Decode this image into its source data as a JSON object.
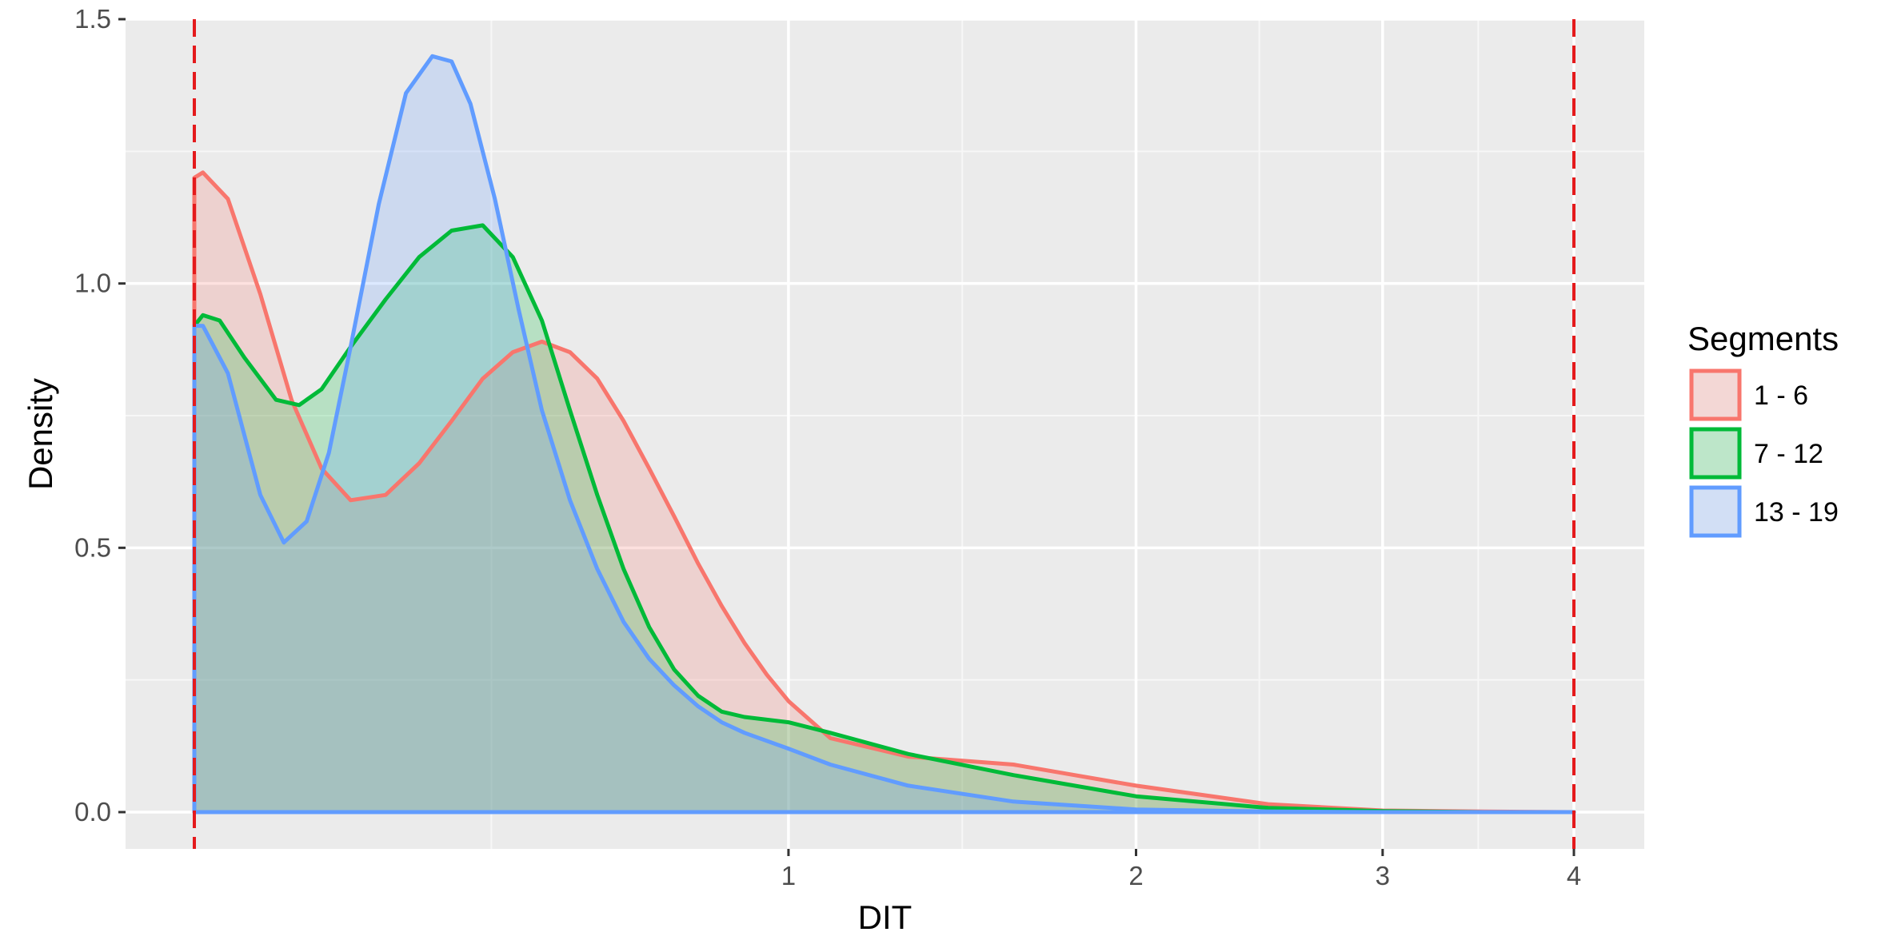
{
  "chart_data": {
    "type": "area",
    "xlabel": "DIT",
    "ylabel": "Density",
    "x_scale": "log10(x + 1)",
    "xlim": [
      0,
      4
    ],
    "ylim": [
      0,
      1.5
    ],
    "x_ticks": [
      {
        "value": 1,
        "label": "1"
      },
      {
        "value": 2,
        "label": "2"
      },
      {
        "value": 3,
        "label": "3"
      },
      {
        "value": 4,
        "label": "4"
      }
    ],
    "y_ticks": [
      {
        "value": 0.0,
        "label": "0.0"
      },
      {
        "value": 0.5,
        "label": "0.5"
      },
      {
        "value": 1.0,
        "label": "1.0"
      },
      {
        "value": 1.5,
        "label": "1.5"
      }
    ],
    "grid": true,
    "legend": {
      "title": "Segments",
      "position": "right"
    },
    "reference_lines": [
      {
        "x": 0,
        "style": "dashed",
        "color": "#e41a1c"
      },
      {
        "x": 4,
        "style": "dashed",
        "color": "#e41a1c"
      }
    ],
    "series": [
      {
        "name": "1 - 6",
        "color": "#F8766D",
        "x": [
          0,
          0.01,
          0.04,
          0.08,
          0.12,
          0.16,
          0.2,
          0.25,
          0.3,
          0.35,
          0.4,
          0.45,
          0.5,
          0.55,
          0.6,
          0.65,
          0.7,
          0.75,
          0.8,
          0.85,
          0.9,
          0.95,
          1.0,
          1.1,
          1.3,
          1.6,
          2.0,
          2.5,
          3.0,
          3.5,
          4.0
        ],
        "y": [
          1.2,
          1.21,
          1.16,
          0.98,
          0.78,
          0.65,
          0.59,
          0.6,
          0.66,
          0.74,
          0.82,
          0.87,
          0.89,
          0.87,
          0.82,
          0.74,
          0.65,
          0.56,
          0.47,
          0.39,
          0.32,
          0.26,
          0.21,
          0.14,
          0.105,
          0.09,
          0.05,
          0.015,
          0.003,
          0.001,
          0.0
        ]
      },
      {
        "name": "7 - 12",
        "color": "#00BA38",
        "x": [
          0,
          0.01,
          0.03,
          0.06,
          0.1,
          0.13,
          0.16,
          0.2,
          0.25,
          0.3,
          0.35,
          0.4,
          0.45,
          0.5,
          0.55,
          0.6,
          0.65,
          0.7,
          0.75,
          0.8,
          0.85,
          0.9,
          1.0,
          1.1,
          1.3,
          1.6,
          2.0,
          2.5,
          3.0,
          3.5,
          4.0
        ],
        "y": [
          0.92,
          0.94,
          0.93,
          0.86,
          0.78,
          0.77,
          0.8,
          0.88,
          0.97,
          1.05,
          1.1,
          1.11,
          1.05,
          0.93,
          0.76,
          0.6,
          0.46,
          0.35,
          0.27,
          0.22,
          0.19,
          0.18,
          0.17,
          0.15,
          0.11,
          0.07,
          0.03,
          0.008,
          0.002,
          0.0,
          0.0
        ]
      },
      {
        "name": "13 - 19",
        "color": "#619CFF",
        "x": [
          0,
          0.01,
          0.04,
          0.08,
          0.11,
          0.14,
          0.17,
          0.2,
          0.24,
          0.28,
          0.32,
          0.35,
          0.38,
          0.42,
          0.46,
          0.5,
          0.55,
          0.6,
          0.65,
          0.7,
          0.75,
          0.8,
          0.85,
          0.9,
          1.0,
          1.1,
          1.3,
          1.6,
          2.0,
          2.5,
          3.0,
          3.5,
          4.0
        ],
        "y": [
          0.92,
          0.92,
          0.83,
          0.6,
          0.51,
          0.55,
          0.68,
          0.88,
          1.15,
          1.36,
          1.43,
          1.42,
          1.34,
          1.16,
          0.95,
          0.76,
          0.59,
          0.46,
          0.36,
          0.29,
          0.24,
          0.2,
          0.17,
          0.15,
          0.12,
          0.09,
          0.05,
          0.02,
          0.005,
          0.001,
          0.0,
          0.0,
          0.0
        ]
      }
    ]
  }
}
